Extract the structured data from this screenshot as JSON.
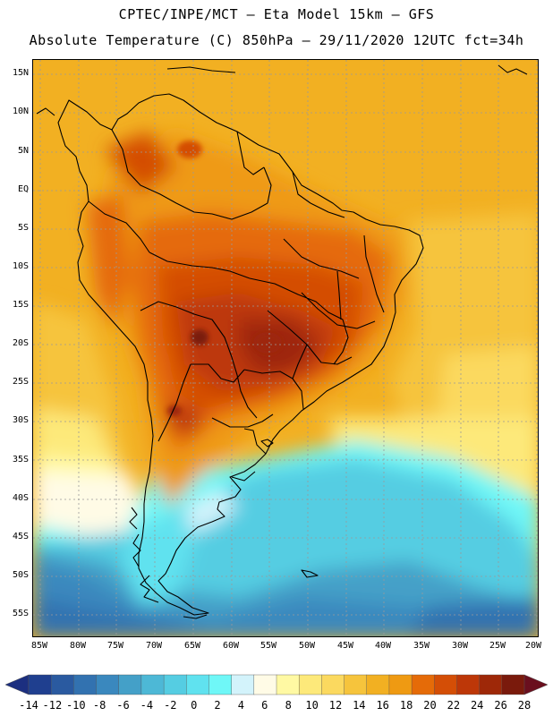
{
  "header": {
    "title_line1": "CPTEC/INPE/MCT –  Eta Model 15km – GFS",
    "title_line2": "Absolute Temperature (C) 850hPa – 29/11/2020 12UTC fct=34h"
  },
  "axes": {
    "lat_labels": [
      "15N",
      "10N",
      "5N",
      "EQ",
      "5S",
      "10S",
      "15S",
      "20S",
      "25S",
      "30S",
      "35S",
      "40S",
      "45S",
      "50S",
      "55S"
    ],
    "lon_labels": [
      "85W",
      "80W",
      "75W",
      "70W",
      "65W",
      "60W",
      "55W",
      "50W",
      "45W",
      "40W",
      "35W",
      "30W",
      "25W",
      "20W"
    ]
  },
  "colorbar": {
    "labels": [
      "-14",
      "-12",
      "-10",
      "-8",
      "-6",
      "-4",
      "-2",
      "0",
      "2",
      "4",
      "6",
      "8",
      "10",
      "12",
      "14",
      "16",
      "18",
      "20",
      "22",
      "24",
      "26",
      "28"
    ],
    "colors": [
      "#1f3f8f",
      "#2a5aa0",
      "#3272b0",
      "#3a88be",
      "#44a0c8",
      "#4db8d6",
      "#55cde2",
      "#60e2ef",
      "#6ff7f7",
      "#d3f3fb",
      "#fffbe6",
      "#fff9a3",
      "#fde97a",
      "#fbd95f",
      "#f6c43c",
      "#f2b022",
      "#ef9a12",
      "#e56b08",
      "#d44e06",
      "#bd3708",
      "#9e2808",
      "#7a1a0c"
    ],
    "under_color": "#1c2f80",
    "over_color": "#6a0f1e"
  }
}
